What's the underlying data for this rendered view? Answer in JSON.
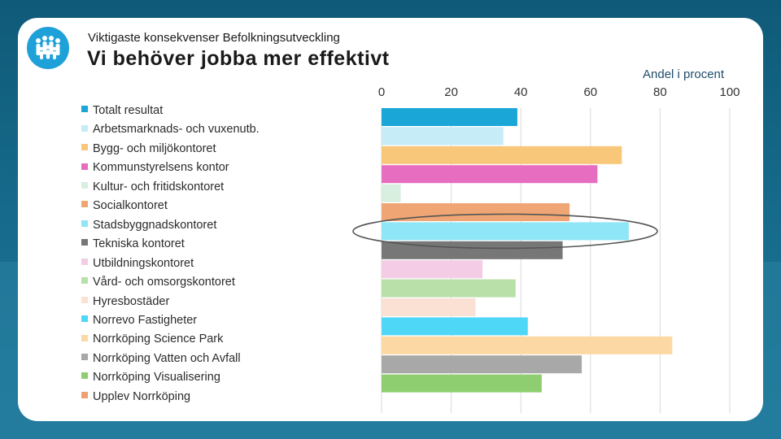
{
  "slide": {
    "subtitle": "Viktigaste konsekvenser Befolkningsutveckling",
    "title": "Vi behöver jobba mer effektivt"
  },
  "colors": {
    "background": "#16698a",
    "card": "#ffffff",
    "logo": "#1ea0d8",
    "highlight_ellipse": "#555555"
  },
  "chart_data": {
    "type": "bar",
    "orientation": "horizontal",
    "unit_label": "Andel i procent",
    "xlim": [
      0,
      100
    ],
    "x_ticks": [
      0,
      20,
      40,
      60,
      80,
      100
    ],
    "grid": true,
    "legend_position": "left",
    "highlighted_category": "Stadsbyggnadskontoret",
    "series": [
      {
        "name": "Totalt resultat",
        "value": 39,
        "color": "#1aa7d8"
      },
      {
        "name": "Arbetsmarknads- och vuxenutb.",
        "value": 35,
        "color": "#c6ecf8"
      },
      {
        "name": "Bygg- och miljökontoret",
        "value": 69,
        "color": "#f9c77a"
      },
      {
        "name": "Kommunstyrelsens kontor",
        "value": 62,
        "color": "#e76dc0"
      },
      {
        "name": "Kultur- och fritidskontoret",
        "value": 5.5,
        "color": "#d8efdf"
      },
      {
        "name": "Socialkontoret",
        "value": 54,
        "color": "#f0a674"
      },
      {
        "name": "Stadsbyggnadskontoret",
        "value": 71,
        "color": "#8ee6f7"
      },
      {
        "name": "Tekniska kontoret",
        "value": 52,
        "color": "#777777"
      },
      {
        "name": "Utbildningskontoret",
        "value": 29,
        "color": "#f5cce6"
      },
      {
        "name": "Vård- och omsorgskontoret",
        "value": 38.5,
        "color": "#b8e0a8"
      },
      {
        "name": "Hyresbostäder",
        "value": 27,
        "color": "#fbe0d4"
      },
      {
        "name": "Norrevo Fastigheter",
        "value": 42,
        "color": "#4fd7f7"
      },
      {
        "name": "Norrköping Science Park",
        "value": 83.5,
        "color": "#fcd8a4"
      },
      {
        "name": "Norrköping Vatten och Avfall",
        "value": 57.5,
        "color": "#a8a8a8"
      },
      {
        "name": "Norrköping Visualisering",
        "value": 46,
        "color": "#8fce70"
      },
      {
        "name": "Upplev Norrköping",
        "value": 0,
        "color": "#f0a070"
      }
    ]
  }
}
